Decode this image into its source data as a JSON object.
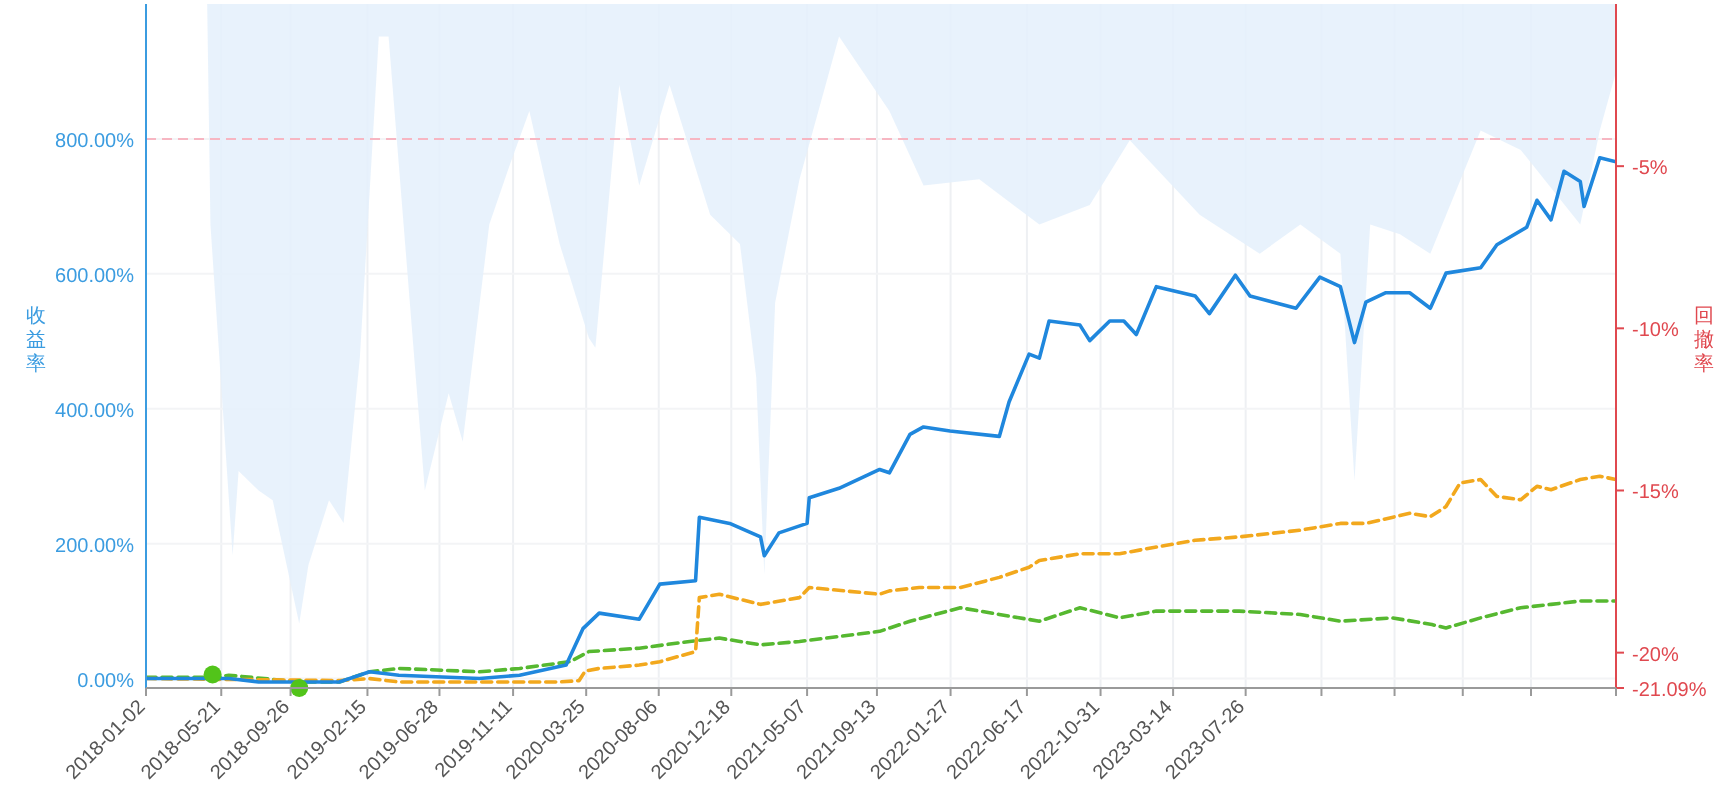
{
  "chart_data": {
    "type": "line",
    "ylabel": "收益率",
    "y2label": "回撤率",
    "grid": true,
    "xlim": [
      "2018-01-02",
      "2025-06-09"
    ],
    "xticks": [
      "2018-01-02",
      "2018-05-21",
      "2018-09-26",
      "2019-02-15",
      "2019-06-28",
      "2019-11-11",
      "2020-03-25",
      "2020-08-06",
      "2020-12-18",
      "2021-05-07",
      "2021-09-13",
      "2022-01-27",
      "2022-06-17",
      "2022-10-31",
      "2023-03-14",
      "2023-07-26",
      {
        "value": "2023-12-13",
        "label": null
      },
      {
        "value": "2024-04-26",
        "label": null
      },
      {
        "value": "2024-08-30",
        "label": null
      },
      {
        "value": "2025-01-03",
        "label": null
      },
      {
        "value": "2025-06-09",
        "label": null
      }
    ],
    "ylim": [
      -14,
      1000
    ],
    "yticks": [
      {
        "value": 0,
        "label": "0.00%"
      },
      {
        "value": 200,
        "label": "200.00%"
      },
      {
        "value": 400,
        "label": "400.00%"
      },
      {
        "value": 600,
        "label": "600.00%"
      },
      {
        "value": 800,
        "label": "800.00%"
      }
    ],
    "y2lim": [
      -21.09,
      0
    ],
    "y2ticks": [
      {
        "value": -5,
        "label": "-5%"
      },
      {
        "value": -10,
        "label": "-10%"
      },
      {
        "value": -15,
        "label": "-15%"
      },
      {
        "value": -20,
        "label": "-20%"
      },
      {
        "value": -21.09,
        "label": "-21.09%"
      }
    ],
    "ref_lines": [
      {
        "axis": "y",
        "value": 800,
        "color": "#f7b6c2",
        "line_style": "dashed"
      }
    ],
    "series": [
      {
        "type": "area",
        "axis": "y2",
        "color": "#e4f0fb",
        "x": [
          "2018-01-02",
          "2018-04-25",
          "2018-05-01",
          "2018-06-11",
          "2018-06-22",
          "2018-07-29",
          "2018-08-24",
          "2018-10-12",
          "2018-10-29",
          "2018-12-06",
          "2019-01-02",
          "2019-02-01",
          "2019-03-08",
          "2019-03-26",
          "2019-06-01",
          "2019-07-15",
          "2019-08-10",
          "2019-09-28",
          "2019-11-04",
          "2019-12-11",
          "2020-02-05",
          "2020-03-30",
          "2020-04-11",
          "2020-05-25",
          "2020-07-01",
          "2020-08-26",
          "2020-11-09",
          "2021-01-03",
          "2021-02-02",
          "2021-02-17",
          "2021-03-09",
          "2021-04-23",
          "2021-07-05",
          "2021-10-06",
          "2021-12-08",
          "2022-03-21",
          "2022-07-10",
          "2022-10-11",
          "2022-12-24",
          "2023-05-02",
          "2023-08-21",
          "2023-11-04",
          "2024-01-17",
          "2024-02-12",
          "2024-03-12",
          "2024-05-06",
          "2024-07-01",
          "2024-10-02",
          "2024-12-15",
          "2025-04-04",
          "2025-05-10",
          "2025-06-09"
        ],
        "values": [
          0,
          0,
          -6.8,
          -17,
          -14.4,
          -15,
          -15.3,
          -19.1,
          -17.3,
          -15.3,
          -16,
          -10.9,
          -1,
          -1,
          -15,
          -12,
          -13.5,
          -6.8,
          -5,
          -3.3,
          -7.4,
          -10.3,
          -10.6,
          -2.5,
          -5.6,
          -2.5,
          -6.5,
          -7.4,
          -11.5,
          -17.6,
          -9.2,
          -5.4,
          -1,
          -3.3,
          -5.6,
          -5.4,
          -6.8,
          -6.2,
          -4.2,
          -6.5,
          -7.7,
          -6.8,
          -7.7,
          -14.7,
          -6.8,
          -7.1,
          -7.7,
          -3.9,
          -4.5,
          -6.8,
          -3.9,
          -2.1
        ]
      },
      {
        "type": "line",
        "line_style": "dashed",
        "color": "#56b830",
        "x": [
          "2018-01-02",
          "2018-05-16",
          "2018-06-04",
          "2018-10-12",
          "2018-12-25",
          "2019-02-19",
          "2019-04-14",
          "2019-09-10",
          "2019-11-23",
          "2020-02-24",
          "2020-03-30",
          "2020-07-01",
          "2020-10-02",
          "2020-11-26",
          "2021-02-10",
          "2021-04-23",
          "2021-09-18",
          "2021-11-13",
          "2022-02-14",
          "2022-04-27",
          "2022-07-10",
          "2022-09-23",
          "2022-12-05",
          "2023-02-11",
          "2023-04-24",
          "2023-07-14",
          "2023-11-04",
          "2024-01-17",
          "2024-04-22",
          "2024-07-04",
          "2024-07-30",
          "2024-10-02",
          "2024-12-15",
          "2025-02-09",
          "2025-04-04",
          "2025-06-09"
        ],
        "values": [
          2,
          2,
          5,
          -5,
          -5,
          10,
          15,
          10,
          15,
          25,
          40,
          45,
          55,
          60,
          50,
          55,
          70,
          85,
          105,
          95,
          85,
          105,
          90,
          100,
          100,
          100,
          95,
          85,
          90,
          80,
          75,
          90,
          105,
          110,
          115,
          115
        ]
      },
      {
        "type": "line",
        "line_style": "dashed",
        "color": "#f2a81d",
        "x": [
          "2018-01-02",
          "2018-12-25",
          "2019-02-19",
          "2019-04-14",
          "2020-02-05",
          "2020-03-12",
          "2020-03-23",
          "2020-04-18",
          "2020-07-01",
          "2020-08-08",
          "2020-10-13",
          "2020-10-20",
          "2020-11-26",
          "2021-02-10",
          "2021-04-23",
          "2021-05-11",
          "2021-09-18",
          "2021-10-06",
          "2021-11-30",
          "2022-02-14",
          "2022-04-27",
          "2022-06-21",
          "2022-07-10",
          "2022-09-23",
          "2022-12-05",
          "2023-02-11",
          "2023-04-24",
          "2023-07-14",
          "2023-11-04",
          "2024-01-17",
          "2024-03-04",
          "2024-05-24",
          "2024-07-01",
          "2024-07-30",
          "2024-08-25",
          "2024-10-02",
          "2024-11-01",
          "2024-12-15",
          "2025-01-14",
          "2025-02-09",
          "2025-04-04",
          "2025-05-10",
          "2025-06-09"
        ],
        "values": [
          0,
          -3,
          0,
          -5,
          -5,
          -3,
          11,
          15,
          20,
          25,
          40,
          120,
          125,
          110,
          120,
          135,
          125,
          130,
          135,
          135,
          150,
          165,
          175,
          185,
          185,
          195,
          205,
          210,
          220,
          230,
          230,
          245,
          240,
          255,
          290,
          295,
          270,
          265,
          285,
          280,
          295,
          300,
          295
        ]
      },
      {
        "type": "line",
        "line_style": "solid",
        "color": "#1f87dd",
        "x": [
          "2018-01-02",
          "2018-06-04",
          "2018-07-29",
          "2018-10-12",
          "2018-12-25",
          "2019-02-19",
          "2019-04-14",
          "2019-09-10",
          "2019-11-23",
          "2020-02-17",
          "2020-03-19",
          "2020-04-18",
          "2020-07-01",
          "2020-08-08",
          "2020-10-13",
          "2020-10-20",
          "2020-12-15",
          "2021-02-10",
          "2021-02-17",
          "2021-03-16",
          "2021-05-07",
          "2021-05-11",
          "2021-07-05",
          "2021-09-18",
          "2021-10-06",
          "2021-11-13",
          "2021-12-08",
          "2022-01-26",
          "2022-04-27",
          "2022-05-15",
          "2022-06-21",
          "2022-07-10",
          "2022-07-28",
          "2022-09-23",
          "2022-10-11",
          "2022-11-17",
          "2022-12-13",
          "2023-01-05",
          "2023-02-11",
          "2023-04-24",
          "2023-05-20",
          "2023-07-07",
          "2023-08-03",
          "2023-10-27",
          "2023-12-10",
          "2024-01-17",
          "2024-02-12",
          "2024-03-04",
          "2024-04-10",
          "2024-05-24",
          "2024-07-01",
          "2024-07-30",
          "2024-10-02",
          "2024-11-01",
          "2024-12-26",
          "2025-01-14",
          "2025-02-09",
          "2025-03-05",
          "2025-04-04",
          "2025-04-11",
          "2025-05-10",
          "2025-06-09"
        ],
        "values": [
          0,
          0,
          -5,
          -5,
          -5,
          10,
          5,
          0,
          5,
          20,
          74,
          97,
          88,
          140,
          145,
          239,
          230,
          210,
          182,
          216,
          230,
          268,
          282,
          310,
          305,
          362,
          373,
          367,
          359,
          410,
          481,
          475,
          530,
          524,
          501,
          530,
          530,
          510,
          581,
          567,
          541,
          598,
          567,
          549,
          595,
          581,
          498,
          558,
          572,
          572,
          549,
          601,
          609,
          643,
          669,
          709,
          680,
          752,
          737,
          700,
          772,
          766
        ]
      },
      {
        "type": "scatter",
        "marker": "circle",
        "color": "#52c41a",
        "x": [
          "2018-05-05",
          "2018-10-12"
        ],
        "values": [
          6,
          -14
        ]
      }
    ]
  }
}
